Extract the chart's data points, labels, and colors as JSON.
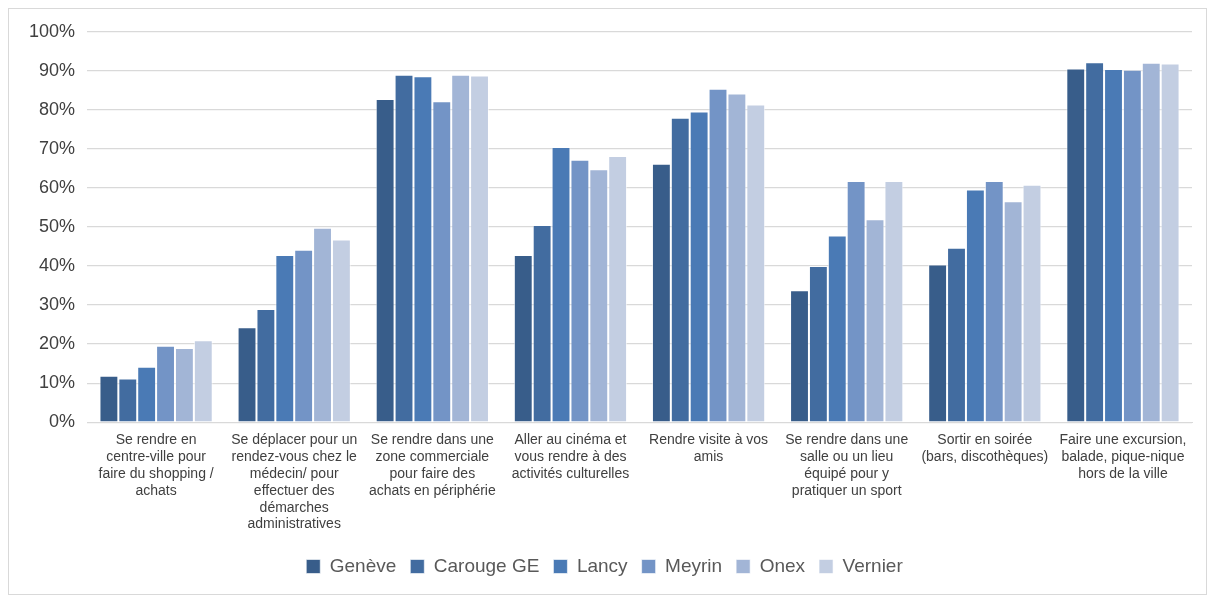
{
  "chart_data": {
    "type": "bar",
    "categories": [
      "Se rendre en centre-ville pour faire du shopping / achats",
      "Se déplacer pour un rendez-vous chez le médecin/ pour effectuer des démarches administratives",
      "Se rendre dans une zone commerciale pour faire des achats en périphérie",
      "Aller au cinéma et vous rendre à des activités culturelles",
      "Rendre visite à vos amis",
      "Se rendre dans une salle ou un lieu équipé pour y pratiquer un sport",
      "Sortir en soirée (bars, discothèques)",
      "Faire une excursion, balade, pique-nique hors de la ville"
    ],
    "series": [
      {
        "name": "Genève",
        "color": "#385d8a",
        "values": [
          11.9,
          24.3,
          82.8,
          42.8,
          66.2,
          33.8,
          40.4,
          90.6
        ]
      },
      {
        "name": "Carouge GE",
        "color": "#426ca0",
        "values": [
          11.2,
          29,
          89,
          50.5,
          78,
          40,
          44.7,
          92.2
        ]
      },
      {
        "name": "Lancy",
        "color": "#4a7ab5",
        "values": [
          14.2,
          42.8,
          88.6,
          70.5,
          79.6,
          47.8,
          59.6,
          90.5
        ]
      },
      {
        "name": "Meyrin",
        "color": "#7394c6",
        "values": [
          19.6,
          44.2,
          82.2,
          67.2,
          85.4,
          61.8,
          61.8,
          90.3
        ]
      },
      {
        "name": "Onex",
        "color": "#a2b5d6",
        "values": [
          19,
          49.8,
          89,
          64.8,
          84.2,
          52,
          56.6,
          92.1
        ]
      },
      {
        "name": "Vernier",
        "color": "#c3cee2",
        "values": [
          21,
          46.8,
          88.8,
          68.2,
          81.4,
          61.8,
          60.8,
          91.9
        ]
      }
    ],
    "ylim": [
      0,
      100
    ],
    "yticks": [
      {
        "value": 0,
        "label": "0%"
      },
      {
        "value": 10,
        "label": "10%"
      },
      {
        "value": 20,
        "label": "20%"
      },
      {
        "value": 30,
        "label": "30%"
      },
      {
        "value": 40,
        "label": "40%"
      },
      {
        "value": 50,
        "label": "50%"
      },
      {
        "value": 60,
        "label": "60%"
      },
      {
        "value": 70,
        "label": "70%"
      },
      {
        "value": 80,
        "label": "80%"
      },
      {
        "value": 90,
        "label": "90%"
      },
      {
        "value": 100,
        "label": "100%"
      }
    ],
    "grid": "y",
    "legend": "bottom"
  }
}
